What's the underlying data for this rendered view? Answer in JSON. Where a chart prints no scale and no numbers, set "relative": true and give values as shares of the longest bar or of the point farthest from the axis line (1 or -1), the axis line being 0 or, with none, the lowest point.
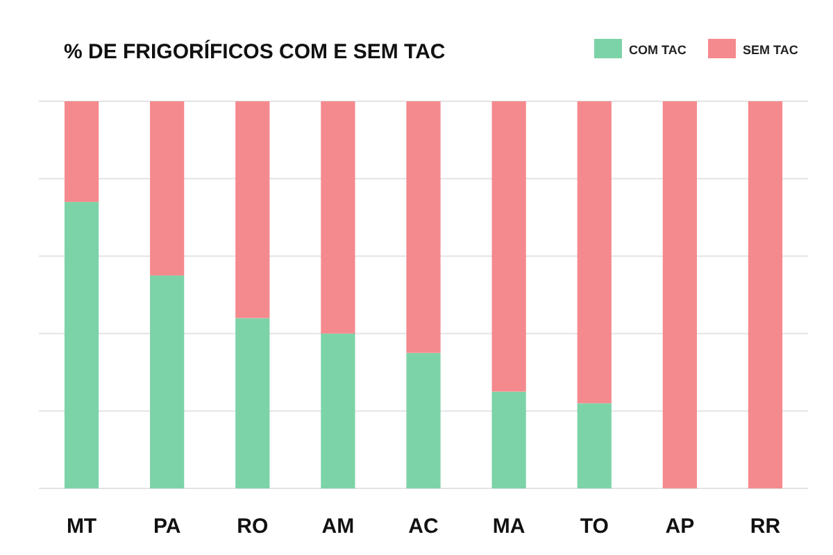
{
  "chart_data": {
    "type": "bar",
    "title": "% DE FRIGORÍFICOS COM E SEM TAC",
    "categories": [
      "MT",
      "PA",
      "RO",
      "AM",
      "AC",
      "MA",
      "TO",
      "AP",
      "RR"
    ],
    "stacked": true,
    "relative": true,
    "grid": "y",
    "legend": "top right",
    "series": [
      {
        "name": "COM TAC",
        "color": "#7dd3a8",
        "values": [
          0.74,
          0.55,
          0.44,
          0.4,
          0.35,
          0.25,
          0.22,
          0,
          0
        ]
      },
      {
        "name": "SEM TAC",
        "color": "#f58a8e",
        "values": [
          0.26,
          0.45,
          0.56,
          0.6,
          0.65,
          0.75,
          0.78,
          1,
          1
        ]
      }
    ]
  }
}
